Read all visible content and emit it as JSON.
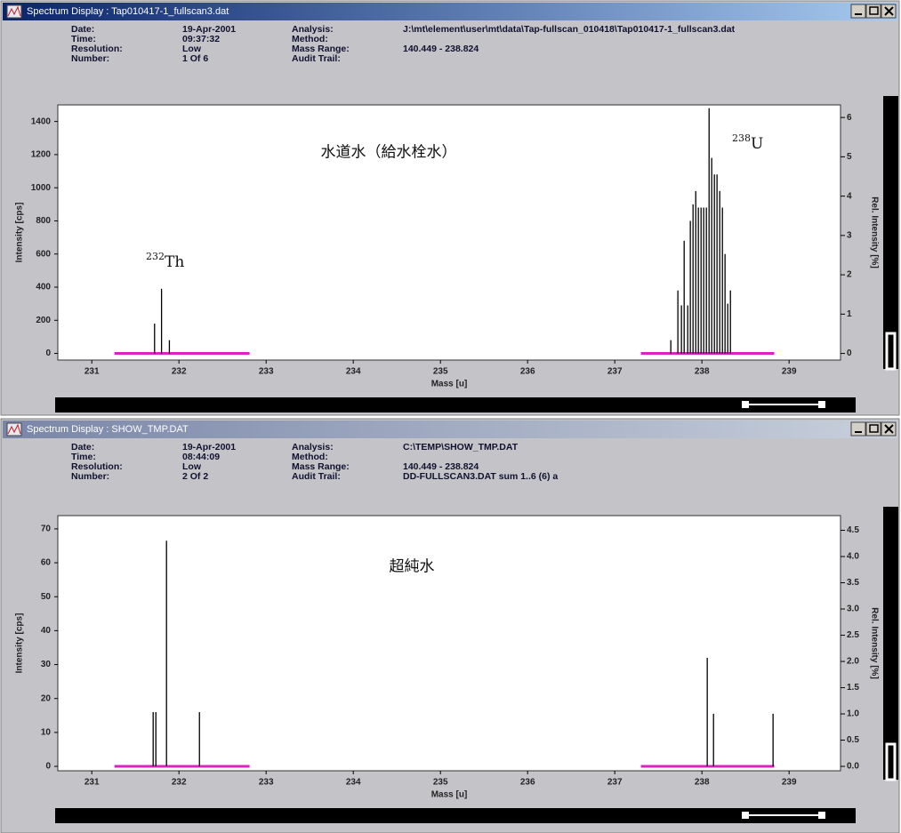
{
  "windows": [
    {
      "title": "Spectrum Display : Tap010417-1_fullscan3.dat",
      "info_left": [
        {
          "label": "Date:",
          "value": "19-Apr-2001"
        },
        {
          "label": "Time:",
          "value": "09:37:32"
        },
        {
          "label": "Resolution:",
          "value": "Low"
        },
        {
          "label": "Number:",
          "value": "1 Of 6"
        }
      ],
      "info_right": [
        {
          "label": "Analysis:",
          "value": "J:\\mt\\element\\user\\mt\\data\\Tap-fullscan_010418\\Tap010417-1_fullscan3.dat"
        },
        {
          "label": "Method:"
        },
        {
          "label": "Mass Range:",
          "value": "140.449 - 238.824"
        },
        {
          "label": "Audit Trail:"
        }
      ]
    },
    {
      "title": "Spectrum Display : SHOW_TMP.DAT",
      "info_left": [
        {
          "label": "Date:",
          "value": "19-Apr-2001"
        },
        {
          "label": "Time:",
          "value": "08:44:09"
        },
        {
          "label": "Resolution:",
          "value": "Low"
        },
        {
          "label": "Number:",
          "value": "2 Of 2"
        }
      ],
      "info_right": [
        {
          "label": "Analysis:",
          "value": "C:\\TEMP\\SHOW_TMP.DAT"
        },
        {
          "label": "Method:"
        },
        {
          "label": "Mass Range:",
          "value": "140.449 - 238.824"
        },
        {
          "label": "Audit Trail:",
          "value": "DD-FULLSCAN3.DAT  sum 1..6 (6) a"
        }
      ]
    }
  ],
  "chart_data": [
    {
      "type": "stem",
      "annotation": "水道水（給水栓水）",
      "isotopes": [
        {
          "mass": "232",
          "element": "Th"
        },
        {
          "mass": "238",
          "element": "U"
        }
      ],
      "x_label": "Mass [u]",
      "y_label": "Intensity [cps]",
      "y2_label": "Rel. Intensity [%]",
      "color": "#000000",
      "window_color": "#e020c0",
      "x": [
        231.72,
        231.8,
        231.89,
        237.643,
        237.724,
        237.765,
        237.796,
        237.837,
        237.867,
        237.898,
        237.929,
        237.959,
        237.99,
        238.02,
        238.051,
        238.082,
        238.112,
        238.143,
        238.173,
        238.204,
        238.235,
        238.265,
        238.296,
        238.327
      ],
      "values": [
        180,
        390,
        80,
        80,
        380,
        290,
        680,
        290,
        800,
        900,
        980,
        880,
        880,
        880,
        880,
        1480,
        1180,
        1080,
        1080,
        980,
        880,
        600,
        300,
        380
      ],
      "mass_windows": [
        [
          231.26,
          232.81
        ],
        [
          237.3,
          238.83
        ]
      ],
      "xlim": [
        230.61,
        239.59
      ],
      "xticks": [
        231,
        232,
        233,
        234,
        235,
        236,
        237,
        238,
        239
      ],
      "ylim": [
        -40,
        1500
      ],
      "yticks": [
        0,
        200,
        400,
        600,
        800,
        1000,
        1200,
        1400
      ],
      "y2lim": [
        -0.168,
        6.32
      ],
      "y2ticks": [
        0,
        1,
        2,
        3,
        4,
        5,
        6
      ]
    },
    {
      "type": "stem",
      "annotation": "超純水",
      "x_label": "Mass [u]",
      "y_label": "Intensity [cps]",
      "y2_label": "Rel. Intensity [%]",
      "color": "#000000",
      "window_color": "#e020c0",
      "x": [
        231.704,
        231.735,
        231.857,
        232.235,
        238.061,
        238.133,
        238.816
      ],
      "values": [
        16,
        16,
        66.5,
        16,
        32,
        15.5,
        15.5
      ],
      "mass_windows": [
        [
          231.26,
          232.81
        ],
        [
          237.3,
          238.83
        ]
      ],
      "xlim": [
        230.61,
        239.59
      ],
      "xticks": [
        231,
        232,
        233,
        234,
        235,
        236,
        237,
        238,
        239
      ],
      "ylim": [
        -1.3,
        73.9
      ],
      "yticks": [
        0,
        10,
        20,
        30,
        40,
        50,
        60,
        70
      ],
      "y2lim": [
        -0.084,
        4.78
      ],
      "y2ticks": [
        {
          "value": 0,
          "label": "0.0"
        },
        0.5,
        {
          "value": 1,
          "label": "1.0"
        },
        1.5,
        {
          "value": 2,
          "label": "2.0"
        },
        2.5,
        {
          "value": 3,
          "label": "3.0"
        },
        3.5,
        {
          "value": 4,
          "label": "4.0"
        },
        4.5
      ]
    }
  ]
}
